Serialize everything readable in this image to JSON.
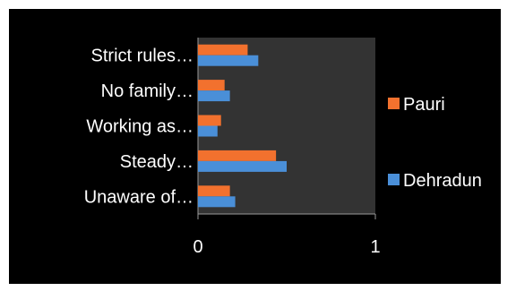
{
  "chart_data": {
    "type": "bar",
    "orientation": "horizontal",
    "categories": [
      "Strict rules…",
      "No family…",
      "Working as…",
      "Steady…",
      "Unaware of…"
    ],
    "series": [
      {
        "name": "Pauri",
        "color": "#f2712e",
        "values": [
          0.28,
          0.15,
          0.13,
          0.44,
          0.18
        ]
      },
      {
        "name": "Dehradun",
        "color": "#4a8fd8",
        "values": [
          0.34,
          0.18,
          0.11,
          0.5,
          0.21
        ]
      }
    ],
    "xlim": [
      0,
      1
    ],
    "xticks": [
      "0",
      "1"
    ],
    "grid": false,
    "legend_position": "right",
    "plot_background": "#333333",
    "chart_background": "#000000"
  }
}
